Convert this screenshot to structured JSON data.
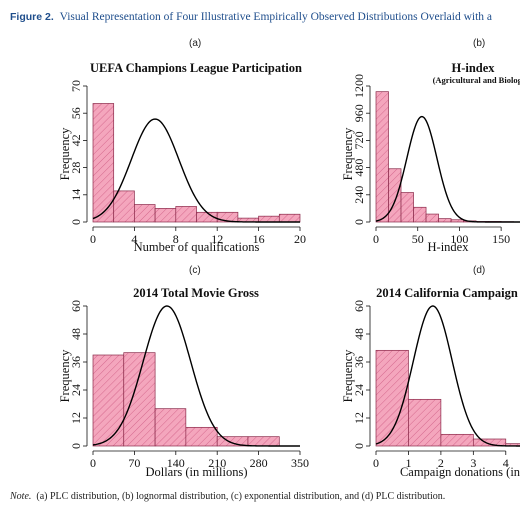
{
  "figure": {
    "label": "Figure 2.",
    "title": "Visual Representation of Four Illustrative Empirically Observed Distributions Overlaid with a",
    "note_label": "Note.",
    "note": "(a) PLC distribution, (b) lognormal distribution, (c) exponential distribution, and (d) PLC distribution.",
    "panel_letters": [
      "(a)",
      "(b)",
      "(c)",
      "(d)"
    ],
    "colors": {
      "title_blue": "#1f4e8c",
      "bar_fill": "#f4a6bd",
      "bar_stroke": "#8a2a4a",
      "hatch": "#c44a72",
      "curve": "#000000"
    }
  },
  "chart_data": [
    {
      "type": "bar",
      "title": "UEFA Champions League Participation",
      "subtitle": "",
      "xlabel": "Number of qualifications",
      "ylabel": "Frequency",
      "xlim": [
        0,
        20
      ],
      "ylim": [
        0,
        70
      ],
      "xticks": [
        0,
        4,
        8,
        12,
        16,
        20
      ],
      "yticks": [
        0,
        14,
        28,
        42,
        56,
        70
      ],
      "bins": [
        [
          0,
          2
        ],
        [
          2,
          4
        ],
        [
          4,
          6
        ],
        [
          6,
          8
        ],
        [
          8,
          10
        ],
        [
          10,
          12
        ],
        [
          12,
          14
        ],
        [
          14,
          16
        ],
        [
          16,
          18
        ],
        [
          18,
          20
        ]
      ],
      "values": [
        61,
        16,
        9,
        7,
        8,
        5,
        5,
        2,
        3,
        4
      ],
      "curve": {
        "mean": 6,
        "sd": 2.3,
        "peak": 53
      },
      "grid": false
    },
    {
      "type": "bar",
      "title": "H-index",
      "subtitle": "(Agricultural and Biological S",
      "xlabel": "H-index",
      "ylabel": "Frequency",
      "xlim": [
        0,
        175
      ],
      "ylim": [
        0,
        1200
      ],
      "xticks": [
        0,
        50,
        100,
        150
      ],
      "yticks": [
        0,
        240,
        480,
        720,
        960,
        1200
      ],
      "bins": [
        [
          0,
          15
        ],
        [
          15,
          30
        ],
        [
          30,
          45
        ],
        [
          45,
          60
        ],
        [
          60,
          75
        ],
        [
          75,
          90
        ],
        [
          90,
          105
        ],
        [
          105,
          120
        ],
        [
          120,
          135
        ],
        [
          135,
          150
        ],
        [
          150,
          165
        ]
      ],
      "values": [
        1150,
        470,
        260,
        130,
        70,
        30,
        20,
        10,
        5,
        5,
        3
      ],
      "curve": {
        "mean": 55,
        "sd": 18,
        "peak": 930
      },
      "grid": false
    },
    {
      "type": "bar",
      "title": "2014 Total Movie Gross",
      "subtitle": "",
      "xlabel": "Dollars (in millions)",
      "ylabel": "Frequency",
      "xlim": [
        0,
        350
      ],
      "ylim": [
        0,
        60
      ],
      "xticks": [
        0,
        70,
        140,
        210,
        280,
        350
      ],
      "yticks": [
        0,
        12,
        24,
        36,
        48,
        60
      ],
      "bins": [
        [
          0,
          52
        ],
        [
          52,
          105
        ],
        [
          105,
          157
        ],
        [
          157,
          210
        ],
        [
          210,
          262
        ],
        [
          262,
          315
        ]
      ],
      "values": [
        39,
        40,
        16,
        8,
        4,
        4
      ],
      "curve": {
        "mean": 125,
        "sd": 40,
        "peak": 60
      },
      "grid": false
    },
    {
      "type": "bar",
      "title": "2014 California Campaign",
      "subtitle": "",
      "xlabel": "Campaign donations (in",
      "ylabel": "Frequency",
      "xlim": [
        0,
        4.5
      ],
      "ylim": [
        0,
        60
      ],
      "xticks": [
        0,
        1,
        2,
        3,
        4
      ],
      "yticks": [
        0,
        12,
        24,
        36,
        48,
        60
      ],
      "bins": [
        [
          0,
          1
        ],
        [
          1,
          2
        ],
        [
          2,
          3
        ],
        [
          3,
          4
        ],
        [
          4,
          5
        ]
      ],
      "values": [
        41,
        20,
        5,
        3,
        1
      ],
      "curve": {
        "mean": 1.75,
        "sd": 0.6,
        "peak": 60
      },
      "grid": false
    }
  ]
}
